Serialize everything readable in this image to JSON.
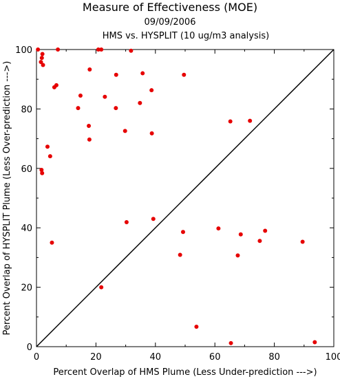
{
  "chart_data": {
    "type": "scatter",
    "title": "Measure of Effectiveness (MOE)",
    "subtitle": "09/09/2006",
    "subtitle2": "HMS vs. HYSPLIT  (10 ug/m3 analysis)",
    "xlabel": "Percent Overlap of HMS Plume (Less Under-prediction --->)",
    "ylabel": "Percent Overlap of HYSPLIT Plume (Less Over-prediction --->)",
    "xlim": [
      0,
      100
    ],
    "ylim": [
      0,
      100
    ],
    "xticks": [
      "0",
      "20",
      "40",
      "60",
      "80",
      "100"
    ],
    "yticks": [
      "0",
      "20",
      "40",
      "60",
      "80",
      "100"
    ],
    "reference_line": "diagonal y = x",
    "point_color": "#e60000",
    "points": [
      [
        0.5,
        100
      ],
      [
        2.0,
        98.5
      ],
      [
        1.8,
        97.2
      ],
      [
        1.5,
        95.8
      ],
      [
        2.2,
        94.8
      ],
      [
        7.2,
        100
      ],
      [
        20.8,
        100
      ],
      [
        21.8,
        100
      ],
      [
        31.8,
        99.6
      ],
      [
        17.9,
        93.3
      ],
      [
        26.8,
        91.5
      ],
      [
        35.7,
        92.0
      ],
      [
        49.6,
        91.5
      ],
      [
        6.7,
        88.0
      ],
      [
        6.0,
        87.3
      ],
      [
        38.7,
        86.3
      ],
      [
        14.8,
        84.5
      ],
      [
        23.0,
        84.1
      ],
      [
        34.8,
        82.0
      ],
      [
        14.0,
        80.3
      ],
      [
        26.7,
        80.3
      ],
      [
        17.6,
        74.3
      ],
      [
        29.8,
        72.6
      ],
      [
        38.8,
        71.8
      ],
      [
        17.8,
        69.7
      ],
      [
        65.2,
        75.8
      ],
      [
        71.8,
        76.0
      ],
      [
        3.7,
        67.3
      ],
      [
        4.6,
        64.1
      ],
      [
        1.7,
        59.5
      ],
      [
        1.9,
        58.4
      ],
      [
        30.3,
        41.9
      ],
      [
        39.3,
        43.0
      ],
      [
        49.3,
        38.6
      ],
      [
        61.2,
        39.8
      ],
      [
        68.7,
        37.8
      ],
      [
        76.9,
        39.0
      ],
      [
        5.2,
        35.0
      ],
      [
        75.1,
        35.6
      ],
      [
        89.5,
        35.3
      ],
      [
        48.3,
        30.9
      ],
      [
        67.7,
        30.7
      ],
      [
        21.8,
        20.0
      ],
      [
        53.8,
        6.7
      ],
      [
        65.4,
        1.2
      ],
      [
        93.6,
        1.5
      ]
    ]
  }
}
